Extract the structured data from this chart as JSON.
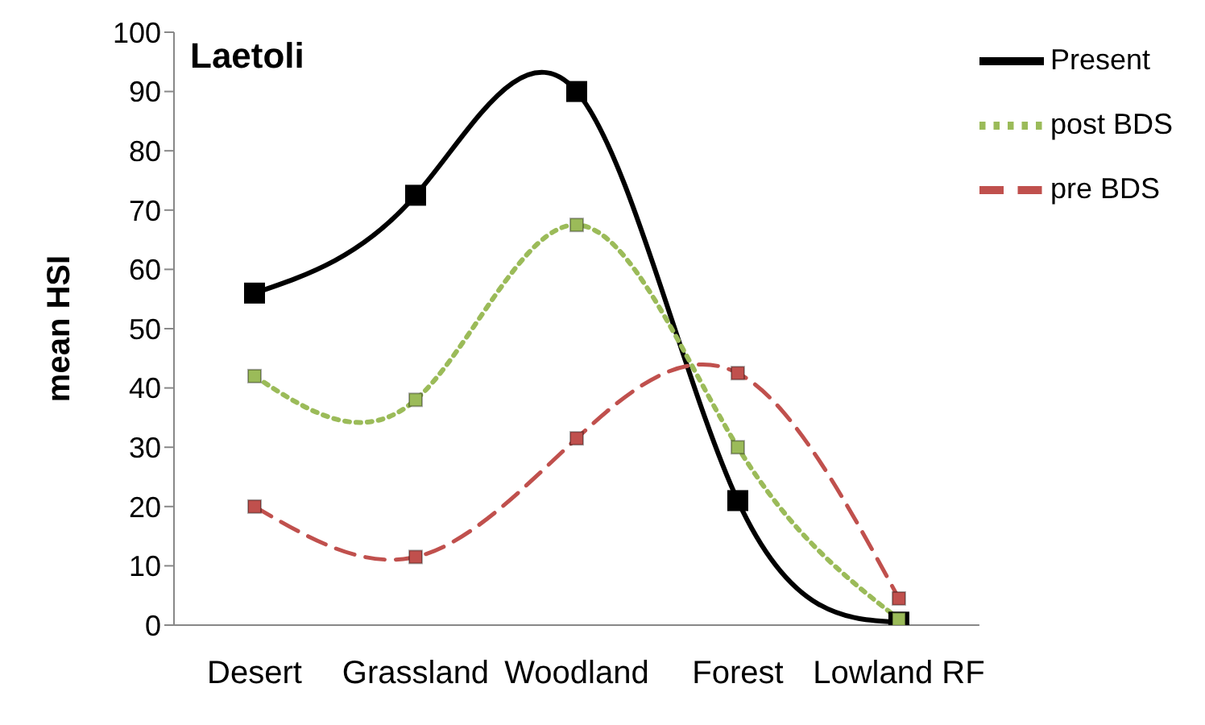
{
  "chart_data": {
    "type": "line",
    "title": "Laetoli",
    "ylabel": "mean HSI",
    "categories": [
      "Desert",
      "Grassland",
      "Woodland",
      "Forest",
      "Lowland RF"
    ],
    "ylim": [
      0,
      100
    ],
    "yticks": [
      0,
      10,
      20,
      30,
      40,
      50,
      60,
      70,
      80,
      90,
      100
    ],
    "grid": false,
    "legend": "top right",
    "marker": "square",
    "series": [
      {
        "name": "Present",
        "color": "#000000",
        "line_style": "solid",
        "values": [
          56,
          72.5,
          90,
          21,
          0.5
        ]
      },
      {
        "name": "post BDS",
        "color": "#9bbb59",
        "line_style": "dotted",
        "values": [
          42,
          38,
          67.5,
          30,
          1
        ]
      },
      {
        "name": "pre BDS",
        "color": "#c0504d",
        "line_style": "dashed",
        "values": [
          20,
          11.5,
          31.5,
          42.5,
          4.5
        ]
      }
    ]
  }
}
